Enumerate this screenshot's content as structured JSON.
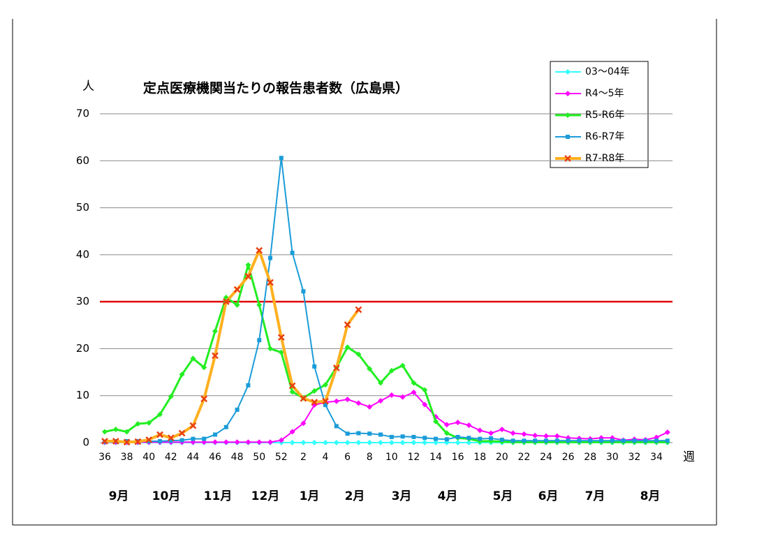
{
  "chart_data": {
    "type": "line",
    "title": "定点医療機関当たりの報告患者数（広島県）",
    "y_unit_label": "人",
    "x_unit_label": "週",
    "categories": [
      "36",
      null,
      "38",
      null,
      "40",
      null,
      "42",
      null,
      "44",
      null,
      "46",
      null,
      "48",
      null,
      "50",
      null,
      "52",
      null,
      "2",
      null,
      "4",
      null,
      "6",
      null,
      "8",
      null,
      "10",
      null,
      "12",
      null,
      "14",
      null,
      "16",
      null,
      "18",
      null,
      "20",
      null,
      "22",
      null,
      "24",
      null,
      "26",
      null,
      "28",
      null,
      "30",
      null,
      "32",
      null,
      "34",
      null
    ],
    "months": [
      "9月",
      "10月",
      "11月",
      "12月",
      "1月",
      "2月",
      "3月",
      "4月",
      "5月",
      "6月",
      "7月",
      "8月"
    ],
    "ylim": [
      0,
      70
    ],
    "yticks": [
      0,
      10,
      20,
      30,
      40,
      50,
      60,
      70
    ],
    "grid": true,
    "threshold": 30,
    "threshold_color": "#e00000",
    "series": [
      {
        "name": "03～04年",
        "color": "#33ffff",
        "marker": "diamond",
        "values": [
          0,
          0,
          0,
          0,
          0,
          0,
          0,
          0,
          0,
          0,
          0,
          0,
          0,
          0,
          0,
          0,
          0,
          0,
          0,
          0,
          0,
          0,
          0,
          0,
          0,
          0,
          0,
          0,
          0,
          0,
          0,
          0,
          0,
          0,
          0,
          0,
          0,
          0,
          0,
          0,
          0,
          0,
          0,
          0,
          0,
          0,
          0,
          0,
          0,
          0,
          0,
          0
        ]
      },
      {
        "name": "R4～5年",
        "color": "#ff00ff",
        "marker": "diamond",
        "values": [
          0.1,
          0.1,
          0.1,
          0.1,
          0.1,
          0.1,
          0.1,
          0.1,
          0.1,
          0.1,
          0.1,
          0.1,
          0.1,
          0.1,
          0.1,
          0.1,
          0.5,
          2.3,
          4.1,
          8.0,
          8.6,
          8.8,
          9.2,
          8.4,
          7.6,
          8.9,
          10.1,
          9.7,
          10.7,
          8.1,
          5.5,
          3.8,
          4.3,
          3.7,
          2.6,
          2.0,
          2.8,
          2.0,
          1.8,
          1.5,
          1.4,
          1.4,
          1.0,
          0.9,
          0.8,
          1.0,
          1.0,
          0.5,
          0.7,
          0.6,
          1.1,
          2.2
        ]
      },
      {
        "name": "R5-R6年",
        "color": "#22ee22",
        "marker": "diamond",
        "width": 3,
        "values": [
          2.3,
          2.8,
          2.3,
          4.0,
          4.2,
          6.0,
          9.8,
          14.5,
          17.9,
          16.0,
          23.7,
          30.9,
          29.3,
          37.8,
          29.3,
          20.0,
          19.2,
          10.8,
          9.5,
          11.0,
          12.3,
          16.0,
          20.3,
          18.8,
          15.7,
          12.7,
          15.3,
          16.4,
          12.7,
          11.2,
          4.5,
          2.0,
          1.0,
          0.8,
          0.3,
          0.3,
          0.2,
          0.1,
          0.1,
          0.1,
          0.1,
          0.1,
          0.1,
          0.1,
          0.1,
          0.1,
          0.1,
          0.1,
          0.1,
          0.1,
          0.1,
          0.1
        ]
      },
      {
        "name": "R6-R7年",
        "color": "#1a9cd8",
        "marker": "square",
        "values": [
          0.2,
          0.3,
          0.3,
          0.3,
          0.3,
          0.3,
          0.4,
          0.5,
          0.8,
          0.8,
          1.7,
          3.3,
          7.0,
          12.2,
          21.8,
          39.3,
          60.6,
          40.4,
          32.2,
          16.2,
          8.0,
          3.5,
          1.9,
          2.0,
          1.9,
          1.7,
          1.2,
          1.3,
          1.2,
          1.0,
          0.8,
          0.7,
          1.2,
          1.0,
          0.8,
          0.9,
          0.6,
          0.4,
          0.4,
          0.4,
          0.4,
          0.4,
          0.4,
          0.4,
          0.4,
          0.4,
          0.4,
          0.4,
          0.4,
          0.4,
          0.4,
          0.4
        ]
      },
      {
        "name": "R7-R8年",
        "color": "#ffb020",
        "marker": "x",
        "marker_color": "#e84010",
        "width": 4,
        "values": [
          0.3,
          0.3,
          0.1,
          0.2,
          0.6,
          1.7,
          1.0,
          2.0,
          3.6,
          9.3,
          18.5,
          30.0,
          32.6,
          35.4,
          40.9,
          34.1,
          22.4,
          12.1,
          9.4,
          8.6,
          8.8,
          15.9,
          25.1,
          28.3,
          null,
          null,
          null,
          null,
          null,
          null,
          null,
          null,
          null,
          null,
          null,
          null,
          null,
          null,
          null,
          null,
          null,
          null,
          null,
          null,
          null,
          null,
          null,
          null,
          null,
          null,
          null,
          null
        ]
      }
    ]
  }
}
